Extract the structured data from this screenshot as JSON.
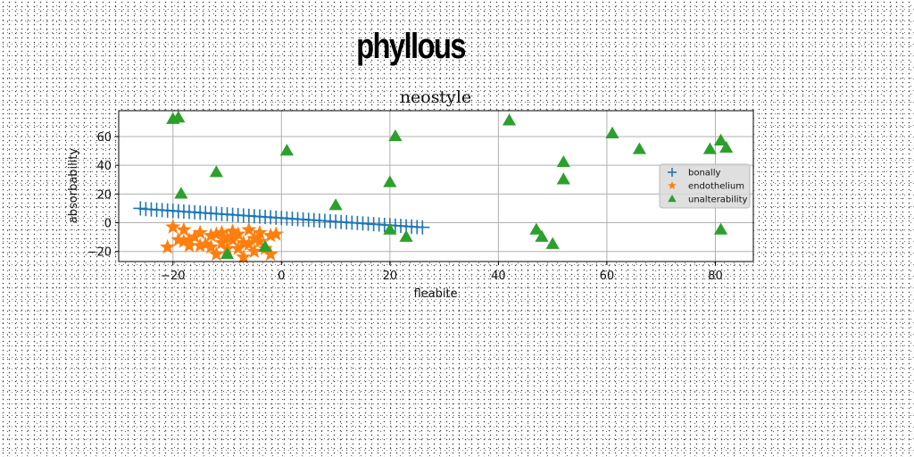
{
  "suptitle": "phyllous",
  "chart_data": {
    "type": "scatter",
    "title": "neostyle",
    "xlabel": "fleabite",
    "ylabel": "absorbability",
    "xlim": [
      -30,
      87
    ],
    "ylim": [
      -27,
      78
    ],
    "xticks": [
      -20,
      0,
      20,
      40,
      60,
      80
    ],
    "yticks": [
      -20,
      0,
      20,
      40,
      60
    ],
    "grid": true,
    "legend_position": "center-right",
    "series": [
      {
        "name": "bonally",
        "marker": "plus",
        "color": "#1f77b4",
        "points": [
          [
            -26,
            10
          ],
          [
            -25,
            9.5
          ],
          [
            -24,
            9.3
          ],
          [
            -23,
            9
          ],
          [
            -22,
            8.8
          ],
          [
            -21,
            8.5
          ],
          [
            -20,
            8.3
          ],
          [
            -19,
            8
          ],
          [
            -18,
            7.8
          ],
          [
            -17,
            7.5
          ],
          [
            -16,
            7.3
          ],
          [
            -15,
            7
          ],
          [
            -14,
            6.8
          ],
          [
            -13,
            6.5
          ],
          [
            -12,
            6.3
          ],
          [
            -11,
            6
          ],
          [
            -10,
            5.8
          ],
          [
            -9,
            5.5
          ],
          [
            -8,
            5.3
          ],
          [
            -7,
            5
          ],
          [
            -6,
            4.8
          ],
          [
            -5,
            4.5
          ],
          [
            -4,
            4.3
          ],
          [
            -3,
            4
          ],
          [
            -2,
            3.8
          ],
          [
            -1,
            3.5
          ],
          [
            0,
            3.3
          ],
          [
            1,
            3
          ],
          [
            2,
            2.8
          ],
          [
            3,
            2.5
          ],
          [
            4,
            2.3
          ],
          [
            5,
            2
          ],
          [
            6,
            1.8
          ],
          [
            7,
            1.5
          ],
          [
            8,
            1.3
          ],
          [
            9,
            1
          ],
          [
            10,
            0.8
          ],
          [
            11,
            0.5
          ],
          [
            12,
            0.3
          ],
          [
            13,
            0
          ],
          [
            14,
            -0.2
          ],
          [
            15,
            -0.5
          ],
          [
            16,
            -0.7
          ],
          [
            17,
            -1
          ],
          [
            18,
            -1.2
          ],
          [
            19,
            -1.5
          ],
          [
            20,
            -1.7
          ],
          [
            21,
            -2
          ],
          [
            22,
            -2.2
          ],
          [
            23,
            -2.5
          ],
          [
            24,
            -2.7
          ],
          [
            25,
            -3
          ],
          [
            26,
            -3.2
          ]
        ]
      },
      {
        "name": "endothelium",
        "marker": "star",
        "color": "#ff7f0e",
        "points": [
          [
            -21,
            -17
          ],
          [
            -20,
            -3
          ],
          [
            -19,
            -12
          ],
          [
            -18,
            -5
          ],
          [
            -17,
            -16
          ],
          [
            -16,
            -10
          ],
          [
            -15,
            -7
          ],
          [
            -14,
            -15
          ],
          [
            -13,
            -9
          ],
          [
            -12,
            -22
          ],
          [
            -11,
            -7
          ],
          [
            -10,
            -18
          ],
          [
            -9,
            -12
          ],
          [
            -8,
            -8
          ],
          [
            -7,
            -24
          ],
          [
            -6,
            -15
          ],
          [
            -5,
            -11
          ],
          [
            -4,
            -7
          ],
          [
            -3,
            -18
          ],
          [
            -2,
            -9
          ],
          [
            -9,
            -6
          ],
          [
            -7,
            -14
          ],
          [
            -10,
            -11
          ],
          [
            -5,
            -20
          ],
          [
            -13,
            -17
          ],
          [
            -18,
            -13
          ],
          [
            -11,
            -14
          ],
          [
            -6,
            -5
          ],
          [
            -8,
            -18
          ],
          [
            -2,
            -22
          ],
          [
            -1,
            -8
          ],
          [
            -17,
            -12
          ],
          [
            -15,
            -16
          ],
          [
            -12,
            -8
          ],
          [
            -4,
            -13
          ]
        ]
      },
      {
        "name": "unalterability",
        "marker": "triangle",
        "color": "#2ca02c",
        "points": [
          [
            -20,
            72
          ],
          [
            -19,
            73
          ],
          [
            -18.5,
            20
          ],
          [
            -12,
            35
          ],
          [
            -10,
            -22
          ],
          [
            -3,
            -17
          ],
          [
            1,
            50
          ],
          [
            10,
            12
          ],
          [
            20,
            28
          ],
          [
            20,
            -5
          ],
          [
            21,
            60
          ],
          [
            23,
            -10
          ],
          [
            42,
            71
          ],
          [
            47,
            -5
          ],
          [
            48,
            -10
          ],
          [
            50,
            -15
          ],
          [
            52,
            42
          ],
          [
            52,
            30
          ],
          [
            61,
            62
          ],
          [
            66,
            51
          ],
          [
            79,
            51
          ],
          [
            81,
            57
          ],
          [
            81,
            -5
          ],
          [
            82,
            52
          ]
        ]
      }
    ]
  }
}
